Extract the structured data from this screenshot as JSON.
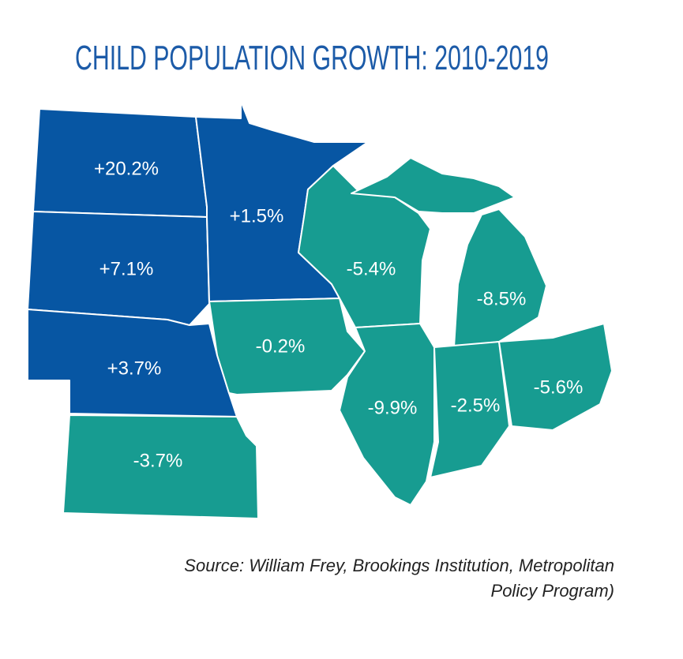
{
  "title": "CHILD POPULATION GROWTH: 2010-2019",
  "regions": [
    {
      "label": "+20.2%",
      "color": "#0756a3"
    },
    {
      "label": "+7.1%",
      "color": "#0756a3"
    },
    {
      "label": "+3.7%",
      "color": "#0756a3"
    },
    {
      "label": "-3.7%",
      "color": "#179c91"
    },
    {
      "label": "+1.5%",
      "color": "#0756a3"
    },
    {
      "label": "-0.2%",
      "color": "#179c91"
    },
    {
      "label": "-5.4%",
      "color": "#179c91"
    },
    {
      "label": "-8.5%",
      "color": "#179c91"
    },
    {
      "label": "-9.9%",
      "color": "#179c91"
    },
    {
      "label": "-2.5%",
      "color": "#179c91"
    },
    {
      "label": "-5.6%",
      "color": "#179c91"
    }
  ],
  "source": [
    "Source: William Frey, Brookings Institution, Metropolitan",
    "Policy Program)"
  ]
}
